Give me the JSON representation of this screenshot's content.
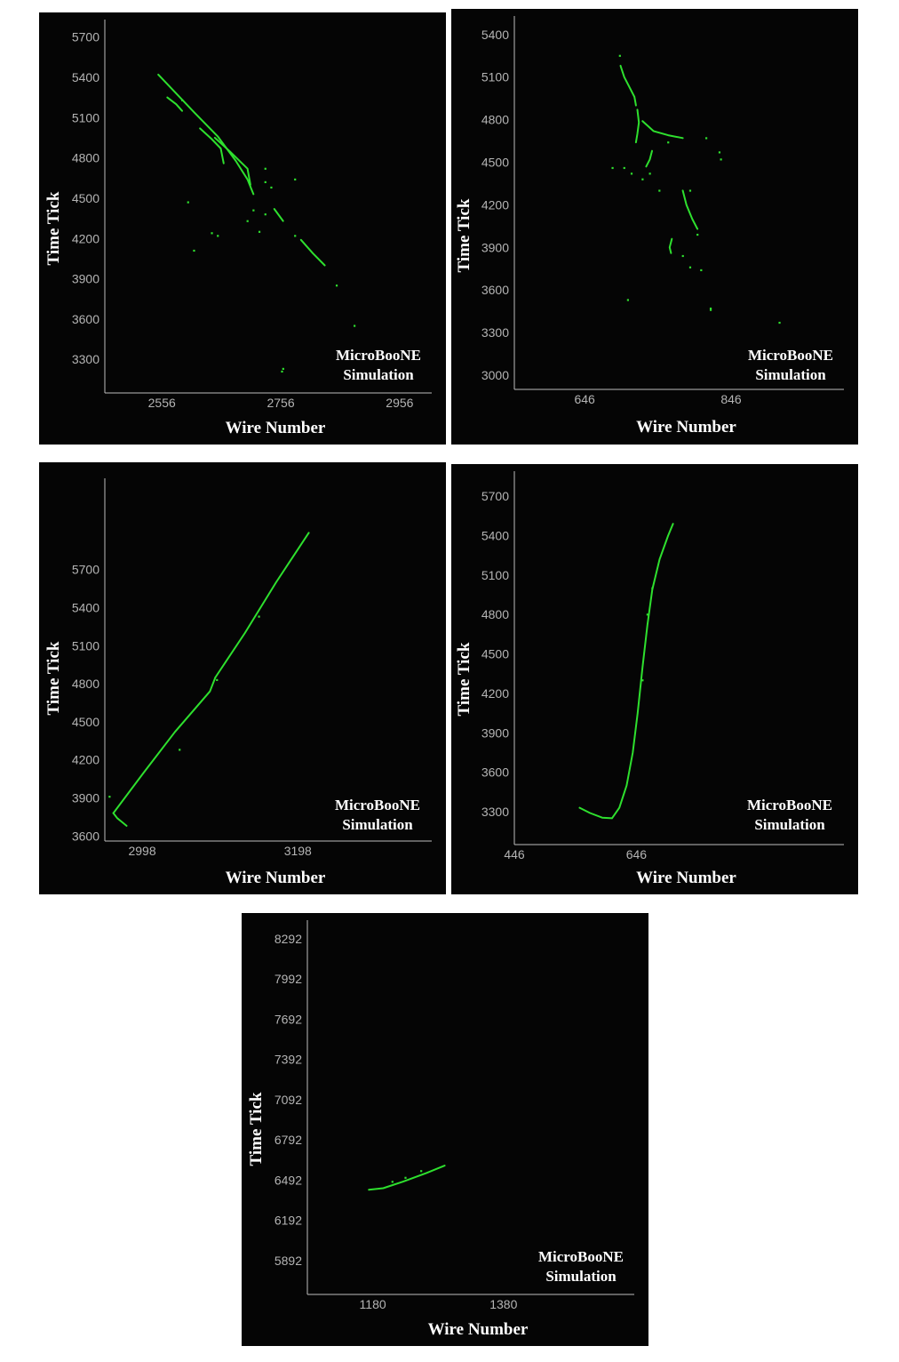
{
  "chart_data": [
    {
      "type": "scatter",
      "xlabel": "Wire Number",
      "ylabel": "Time Tick",
      "x_ticks": [
        2556,
        2756,
        2956
      ],
      "y_ticks": [
        3300,
        3600,
        3900,
        4200,
        4500,
        4800,
        5100,
        5400,
        5700
      ],
      "watermark": [
        "MicroBooNE",
        "Simulation"
      ],
      "xlim": [
        2460,
        3010
      ],
      "ylim": [
        3050,
        5830
      ],
      "hit_color": "#2ee02e",
      "tracks": [
        [
          [
            2550,
            5420
          ],
          [
            2580,
            5280
          ],
          [
            2610,
            5140
          ],
          [
            2650,
            4960
          ],
          [
            2680,
            4780
          ],
          [
            2700,
            4640
          ],
          [
            2710,
            4530
          ]
        ],
        [
          [
            2565,
            5250
          ],
          [
            2580,
            5200
          ],
          [
            2590,
            5150
          ]
        ],
        [
          [
            2620,
            5020
          ],
          [
            2640,
            4940
          ],
          [
            2655,
            4870
          ],
          [
            2660,
            4760
          ]
        ],
        [
          [
            2645,
            4950
          ],
          [
            2670,
            4850
          ],
          [
            2700,
            4720
          ],
          [
            2705,
            4600
          ]
        ],
        [
          [
            2745,
            4420
          ],
          [
            2760,
            4330
          ]
        ],
        [
          [
            2790,
            4190
          ],
          [
            2810,
            4090
          ],
          [
            2830,
            4000
          ]
        ]
      ],
      "hits": [
        [
          2590,
          5230
        ],
        [
          2730,
          4720
        ],
        [
          2740,
          4580
        ],
        [
          2730,
          4620
        ],
        [
          2640,
          4240
        ],
        [
          2650,
          4220
        ],
        [
          2700,
          4330
        ],
        [
          2780,
          4640
        ],
        [
          2720,
          4250
        ],
        [
          2610,
          4110
        ],
        [
          2780,
          4220
        ],
        [
          2850,
          3850
        ],
        [
          2880,
          3550
        ],
        [
          2760,
          3230
        ],
        [
          2758,
          3210
        ],
        [
          2730,
          4380
        ],
        [
          2710,
          4410
        ],
        [
          2600,
          4470
        ]
      ]
    },
    {
      "type": "scatter",
      "xlabel": "Wire Number",
      "ylabel": "Time Tick",
      "x_ticks": [
        646,
        846
      ],
      "y_ticks": [
        3000,
        3300,
        3600,
        3900,
        4200,
        4500,
        4800,
        5100,
        5400
      ],
      "watermark": [
        "MicroBooNE",
        "Simulation"
      ],
      "xlim": [
        550,
        1000
      ],
      "ylim": [
        2900,
        5530
      ],
      "hit_color": "#2ee02e",
      "tracks": [
        [
          [
            695,
            5180
          ],
          [
            700,
            5100
          ],
          [
            708,
            5020
          ],
          [
            714,
            4960
          ],
          [
            716,
            4900
          ]
        ],
        [
          [
            718,
            4870
          ],
          [
            720,
            4780
          ],
          [
            718,
            4700
          ],
          [
            716,
            4640
          ]
        ],
        [
          [
            725,
            4790
          ],
          [
            740,
            4720
          ],
          [
            760,
            4690
          ],
          [
            780,
            4670
          ]
        ],
        [
          [
            738,
            4580
          ],
          [
            735,
            4520
          ],
          [
            730,
            4470
          ]
        ],
        [
          [
            780,
            4300
          ],
          [
            785,
            4200
          ],
          [
            793,
            4100
          ],
          [
            800,
            4030
          ]
        ],
        [
          [
            765,
            3960
          ],
          [
            762,
            3900
          ],
          [
            764,
            3860
          ]
        ]
      ],
      "hits": [
        [
          694,
          5250
        ],
        [
          684,
          4460
        ],
        [
          700,
          4460
        ],
        [
          710,
          4420
        ],
        [
          735,
          4420
        ],
        [
          748,
          4300
        ],
        [
          790,
          4300
        ],
        [
          725,
          4380
        ],
        [
          812,
          4670
        ],
        [
          830,
          4570
        ],
        [
          832,
          4520
        ],
        [
          780,
          3840
        ],
        [
          790,
          3760
        ],
        [
          805,
          3740
        ],
        [
          818,
          3470
        ],
        [
          818,
          3460
        ],
        [
          705,
          3530
        ],
        [
          912,
          3370
        ],
        [
          800,
          3990
        ],
        [
          760,
          4640
        ]
      ]
    },
    {
      "type": "scatter",
      "xlabel": "Wire Number",
      "ylabel": "Time Tick",
      "x_ticks": [
        2998,
        3198
      ],
      "y_ticks": [
        3600,
        3900,
        4200,
        4500,
        4800,
        5100,
        5400,
        5700
      ],
      "watermark": [
        "MicroBooNE",
        "Simulation"
      ],
      "xlim": [
        2950,
        3370
      ],
      "ylim": [
        3560,
        6420
      ],
      "hit_color": "#2ee02e",
      "tracks": [
        [
          [
            2961,
            3780
          ],
          [
            3000,
            4100
          ],
          [
            3040,
            4420
          ],
          [
            3085,
            4740
          ],
          [
            3092,
            4850
          ]
        ],
        [
          [
            3092,
            4850
          ],
          [
            3130,
            5200
          ],
          [
            3170,
            5600
          ],
          [
            3212,
            5990
          ]
        ],
        [
          [
            2961,
            3780
          ],
          [
            2966,
            3740
          ],
          [
            2972,
            3710
          ],
          [
            2978,
            3680
          ]
        ]
      ],
      "hits": [
        [
          2956,
          3910
        ],
        [
          3046,
          4280
        ],
        [
          3094,
          4830
        ],
        [
          3148,
          5330
        ]
      ]
    },
    {
      "type": "scatter",
      "xlabel": "Wire Number",
      "ylabel": "Time Tick",
      "x_ticks": [
        446,
        646
      ],
      "y_ticks": [
        3300,
        3600,
        3900,
        4200,
        4500,
        4800,
        5100,
        5400,
        5700
      ],
      "watermark": [
        "MicroBooNE",
        "Simulation"
      ],
      "xlim": [
        446,
        986
      ],
      "ylim": [
        3050,
        5890
      ],
      "hit_color": "#2ee02e",
      "tracks": [
        [
          [
            553,
            3330
          ],
          [
            570,
            3290
          ],
          [
            590,
            3255
          ],
          [
            606,
            3250
          ],
          [
            618,
            3330
          ],
          [
            630,
            3500
          ],
          [
            640,
            3750
          ],
          [
            648,
            4050
          ],
          [
            656,
            4400
          ],
          [
            664,
            4720
          ],
          [
            672,
            4990
          ],
          [
            684,
            5220
          ],
          [
            698,
            5400
          ],
          [
            706,
            5490
          ]
        ]
      ],
      "hits": [
        [
          656,
          4300
        ],
        [
          664,
          4800
        ],
        [
          672,
          5000
        ]
      ]
    },
    {
      "type": "scatter",
      "xlabel": "Wire Number",
      "ylabel": "Time Tick",
      "x_ticks": [
        1180,
        1380
      ],
      "y_ticks": [
        5892,
        6192,
        6492,
        6792,
        7092,
        7392,
        7692,
        7992,
        8292
      ],
      "watermark": [
        "MicroBooNE",
        "Simulation"
      ],
      "xlim": [
        1080,
        1580
      ],
      "ylim": [
        5640,
        8430
      ],
      "hit_color": "#2ee02e",
      "tracks": [
        [
          [
            1174,
            6420
          ],
          [
            1196,
            6432
          ],
          [
            1226,
            6480
          ],
          [
            1262,
            6545
          ],
          [
            1290,
            6600
          ]
        ]
      ],
      "hits": [
        [
          1210,
          6480
        ],
        [
          1230,
          6510
        ],
        [
          1254,
          6560
        ]
      ]
    }
  ]
}
